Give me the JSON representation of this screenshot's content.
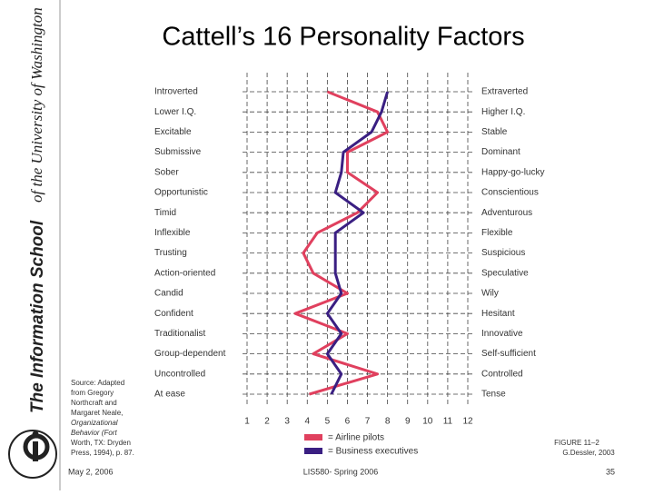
{
  "slide": {
    "title": "Cattell’s 16 Personality Factors",
    "sidebar": {
      "school": "The Information School",
      "university": "of the University of Washington"
    },
    "source_lines": [
      "Source: Adapted",
      "from Gregory",
      "Northcraft and",
      "Margaret Neale,",
      "Organizational",
      "Behavior (Fort",
      "Worth, TX: Dryden",
      "Press, 1994), p. 87."
    ],
    "figure": "FIGURE 11–2",
    "credit": "G.Dessler, 2003",
    "footer": {
      "date": "May 2, 2006",
      "course": "LIS580- Spring 2006",
      "page": "35"
    }
  },
  "chart_data": {
    "type": "line",
    "orientation": "horizontal",
    "categories": [
      "Introverted",
      "Lower I.Q.",
      "Excitable",
      "Submissive",
      "Sober",
      "Opportunistic",
      "Timid",
      "Inflexible",
      "Trusting",
      "Action-oriented",
      "Candid",
      "Confident",
      "Traditionalist",
      "Group-dependent",
      "Uncontrolled",
      "At ease"
    ],
    "opposites": [
      "Extraverted",
      "Higher I.Q.",
      "Stable",
      "Dominant",
      "Happy-go-lucky",
      "Conscientious",
      "Adventurous",
      "Flexible",
      "Suspicious",
      "Speculative",
      "Wily",
      "Hesitant",
      "Innovative",
      "Self-sufficient",
      "Controlled",
      "Tense"
    ],
    "series": [
      {
        "name": "= Airline pilots",
        "color": "#e0405e",
        "values": [
          5,
          7.5,
          8,
          6,
          6,
          7.5,
          6.5,
          4.5,
          3.8,
          4.3,
          6,
          3.4,
          6,
          4.3,
          7.5,
          4.1
        ]
      },
      {
        "name": "= Business executives",
        "color": "#3a1f82",
        "values": [
          8,
          7.7,
          7.2,
          5.8,
          5.7,
          5.4,
          6.8,
          5.4,
          5.4,
          5.4,
          5.7,
          5,
          5.7,
          5,
          5.7,
          5.2
        ]
      }
    ],
    "xlim": [
      1,
      12
    ],
    "xticks": [
      1,
      2,
      3,
      4,
      5,
      6,
      7,
      8,
      9,
      10,
      11,
      12
    ],
    "grid": true
  }
}
